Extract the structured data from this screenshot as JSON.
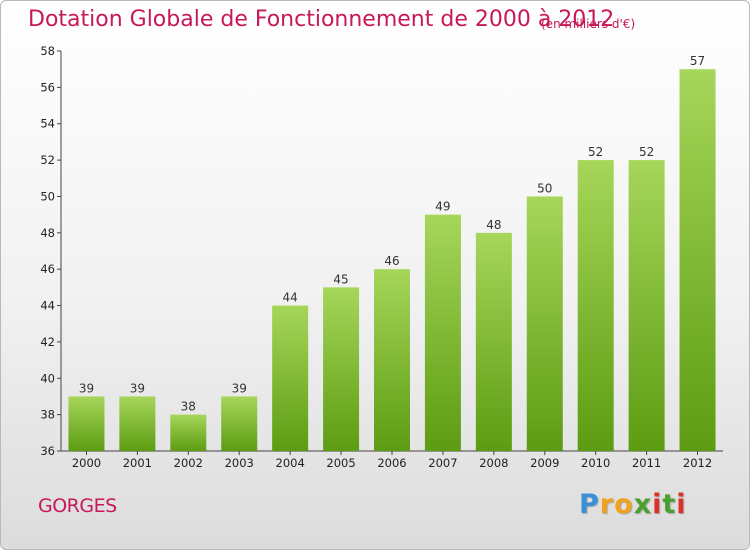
{
  "title": "Dotation Globale de Fonctionnement de 2000 à 2012",
  "unit_note": "(en milliers d'€)",
  "commune": "GORGES",
  "logo": {
    "letters": [
      "P",
      "r",
      "o",
      "x",
      "i",
      "t",
      "i"
    ],
    "colors": [
      "#3b8fd6",
      "#f0a21a",
      "#f0a21a",
      "#4aa02c",
      "#d9342b",
      "#4aa02c",
      "#d9342b"
    ]
  },
  "colors": {
    "title": "#c8185a",
    "bar_top": "#a6d65a",
    "bar_bottom": "#5c9c12"
  },
  "chart_data": {
    "type": "bar",
    "title": "Dotation Globale de Fonctionnement de 2000 à 2012",
    "categories": [
      "2000",
      "2001",
      "2002",
      "2003",
      "2004",
      "2005",
      "2006",
      "2007",
      "2008",
      "2009",
      "2010",
      "2011",
      "2012"
    ],
    "values": [
      39,
      39,
      38,
      39,
      44,
      45,
      46,
      49,
      48,
      50,
      52,
      52,
      57
    ],
    "ylim": [
      36,
      58
    ],
    "yticks": [
      36,
      38,
      40,
      42,
      44,
      46,
      48,
      50,
      52,
      54,
      56,
      58
    ],
    "grid": false,
    "data_labels": true
  }
}
